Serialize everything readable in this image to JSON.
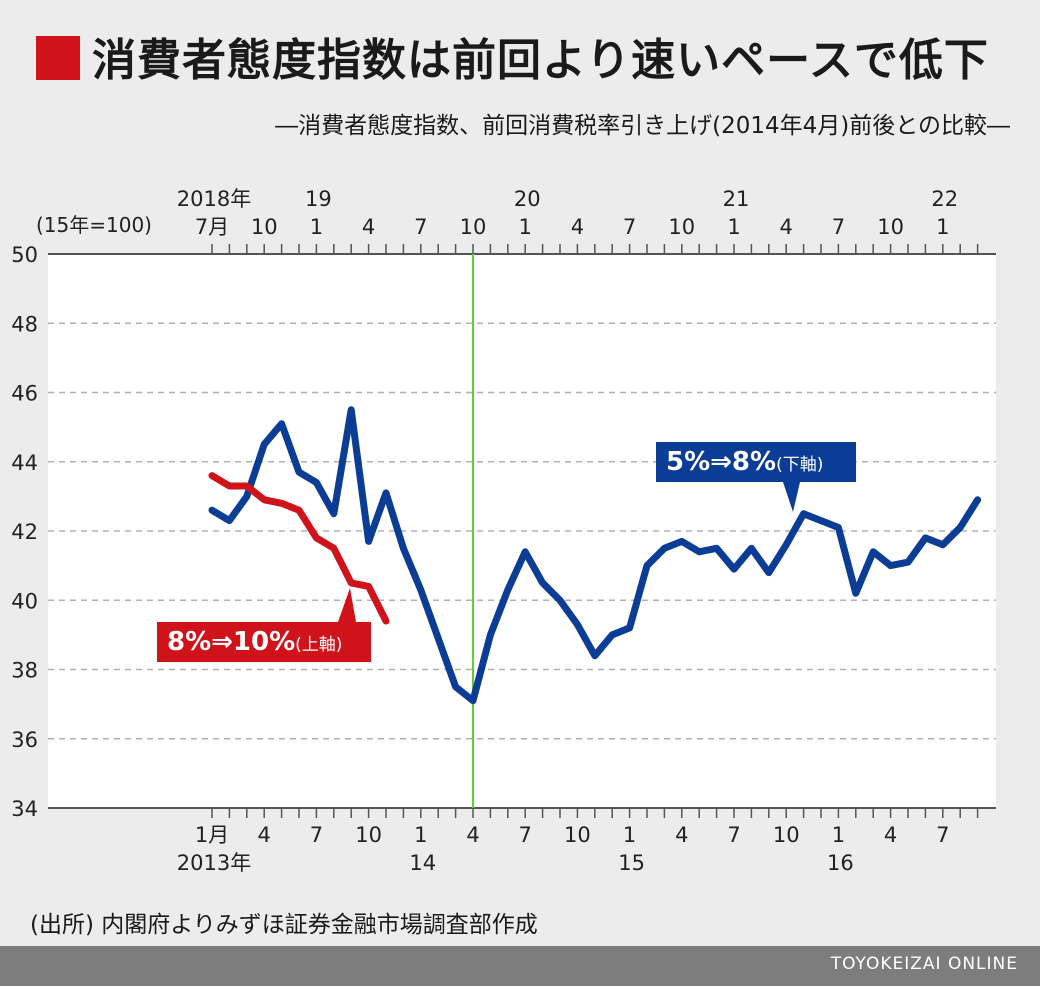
{
  "header": {
    "title": "消費者態度指数は前回より速いペースで低下",
    "subtitle": "―消費者態度指数、前回消費税率引き上げ(2014年4月)前後との比較―"
  },
  "source": "(出所) 内閣府よりみずほ証券金融市場調査部作成",
  "footer": {
    "brand": "TOYOKEIZAI ONLINE"
  },
  "colors": {
    "title_mark": "#d0121b",
    "red_series": "#d0121b",
    "blue_series": "#0b3c96",
    "event_line": "#66cc33",
    "footer_bg": "#7d7d7d"
  },
  "chart_data": {
    "type": "line",
    "unit_label": "(15年=100)",
    "ylim": [
      34,
      50
    ],
    "yticks": [
      50,
      48,
      46,
      44,
      42,
      40,
      38,
      36,
      34
    ],
    "grid": "dashed horizontal",
    "top_axis": {
      "labels": [
        {
          "month": "7月",
          "year": "2018年",
          "index": 0
        },
        {
          "month": "10",
          "year": "",
          "index": 3
        },
        {
          "month": "1",
          "year": "19",
          "index": 6
        },
        {
          "month": "4",
          "year": "",
          "index": 9
        },
        {
          "month": "7",
          "year": "",
          "index": 12
        },
        {
          "month": "10",
          "year": "",
          "index": 15
        },
        {
          "month": "1",
          "year": "20",
          "index": 18
        },
        {
          "month": "4",
          "year": "",
          "index": 21
        },
        {
          "month": "7",
          "year": "",
          "index": 24
        },
        {
          "month": "10",
          "year": "",
          "index": 27
        },
        {
          "month": "1",
          "year": "21",
          "index": 30
        },
        {
          "month": "4",
          "year": "",
          "index": 33
        },
        {
          "month": "7",
          "year": "",
          "index": 36
        },
        {
          "month": "10",
          "year": "",
          "index": 39
        },
        {
          "month": "1",
          "year": "22",
          "index": 42
        }
      ]
    },
    "bottom_axis": {
      "labels": [
        {
          "month": "1月",
          "year": "2013年",
          "index": 0
        },
        {
          "month": "4",
          "year": "",
          "index": 3
        },
        {
          "month": "7",
          "year": "",
          "index": 6
        },
        {
          "month": "10",
          "year": "",
          "index": 9
        },
        {
          "month": "1",
          "year": "14",
          "index": 12
        },
        {
          "month": "4",
          "year": "",
          "index": 15
        },
        {
          "month": "7",
          "year": "",
          "index": 18
        },
        {
          "month": "10",
          "year": "",
          "index": 21
        },
        {
          "month": "1",
          "year": "15",
          "index": 24
        },
        {
          "month": "4",
          "year": "",
          "index": 27
        },
        {
          "month": "7",
          "year": "",
          "index": 30
        },
        {
          "month": "10",
          "year": "",
          "index": 33
        },
        {
          "month": "1",
          "year": "16",
          "index": 36
        },
        {
          "month": "4",
          "year": "",
          "index": 39
        },
        {
          "month": "7",
          "year": "",
          "index": 42
        }
      ]
    },
    "event_index": 15,
    "series": [
      {
        "name": "5%⇒8%(下軸)",
        "axis": "bottom",
        "color": "#0b3c96",
        "values": [
          42.6,
          42.3,
          43.0,
          44.5,
          45.1,
          43.7,
          43.4,
          42.5,
          45.5,
          41.7,
          43.1,
          41.5,
          40.3,
          38.9,
          37.5,
          37.1,
          39.0,
          40.3,
          41.4,
          40.5,
          40.0,
          39.3,
          38.4,
          39.0,
          39.2,
          41.0,
          41.5,
          41.7,
          41.4,
          41.5,
          40.9,
          41.5,
          40.8,
          41.6,
          42.5,
          42.3,
          42.1,
          40.2,
          41.4,
          41.0,
          41.1,
          41.8,
          41.6,
          42.1,
          42.9
        ]
      },
      {
        "name": "8%⇒10%(上軸)",
        "axis": "top",
        "color": "#d0121b",
        "values": [
          43.6,
          43.3,
          43.3,
          42.9,
          42.8,
          42.6,
          41.8,
          41.5,
          40.5,
          40.4,
          39.4
        ]
      }
    ],
    "callouts": [
      {
        "series": 0,
        "text_main": "5%⇒8%",
        "text_paren": "(下軸)"
      },
      {
        "series": 1,
        "text_main": "8%⇒10%",
        "text_paren": "(上軸)"
      }
    ]
  }
}
